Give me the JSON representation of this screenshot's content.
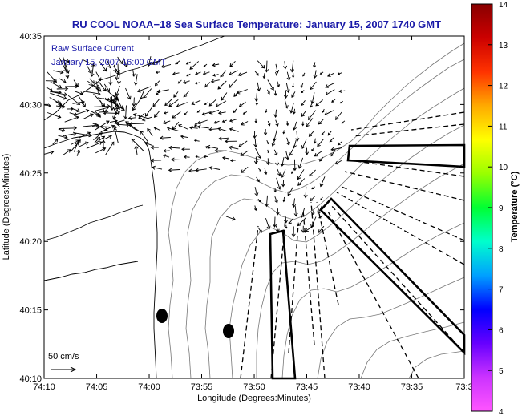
{
  "chart_data": {
    "type": "map",
    "title": "RU COOL  NOAA−18  Sea Surface Temperature:  January 15, 2007 1740 GMT",
    "overlay_label": "Raw Surface Current",
    "overlay_time": "January 15, 2007 16:00 GMT",
    "xlabel": "Longitude (Degrees:Minutes)",
    "ylabel": "Latitude (Degrees:Minutes)",
    "x_ticks": [
      "74:10",
      "74:05",
      "74:00",
      "73:55",
      "73:50",
      "73:45",
      "73:40",
      "73:35",
      "73:3"
    ],
    "x_tick_values": [
      -74.1667,
      -74.0833,
      -74.0,
      -73.9167,
      -73.8333,
      -73.75,
      -73.6667,
      -73.5833,
      -73.5
    ],
    "y_ticks": [
      "40:10",
      "40:15",
      "40:20",
      "40:25",
      "40:30",
      "40:35"
    ],
    "y_tick_values": [
      40.1667,
      40.25,
      40.3333,
      40.4167,
      40.5,
      40.5833
    ],
    "xlim": [
      -74.1667,
      -73.5
    ],
    "ylim": [
      40.1667,
      40.5833
    ],
    "scale_label": "50 cm/s",
    "colorbar": {
      "label": "Temperature (°C)",
      "min": 4,
      "max": 14,
      "ticks": [
        "4",
        "5",
        "6",
        "7",
        "8",
        "9",
        "10",
        "11",
        "12",
        "13",
        "14"
      ],
      "colors": [
        "#ff55ff",
        "#cc33ff",
        "#6600ff",
        "#0000ff",
        "#00a0ff",
        "#00ffcc",
        "#00ff33",
        "#99ff00",
        "#ffff00",
        "#ffaa00",
        "#ff3300",
        "#cc0000",
        "#880000"
      ]
    }
  }
}
